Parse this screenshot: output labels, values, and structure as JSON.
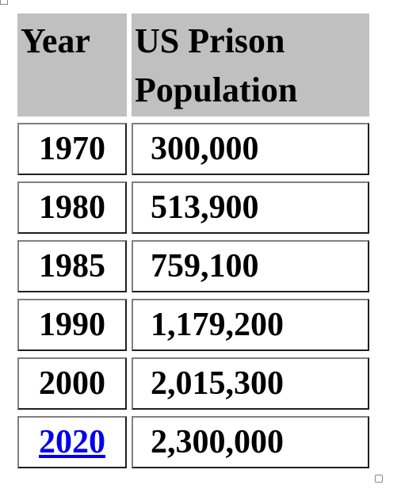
{
  "table": {
    "header": [
      "Year",
      "US Prison Population"
    ],
    "rows": [
      [
        "1970",
        "300,000"
      ],
      [
        "1980",
        "513,900"
      ],
      [
        "1985",
        "759,100"
      ],
      [
        "1990",
        "1,179,200"
      ],
      [
        "2000",
        "2,015,300"
      ],
      [
        "2020",
        "2,300,000"
      ]
    ]
  }
}
